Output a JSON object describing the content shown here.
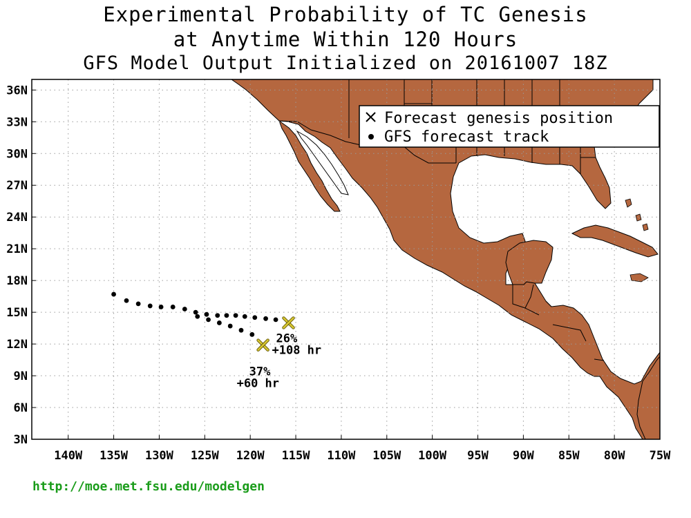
{
  "title": {
    "line1": "Experimental Probability of TC Genesis",
    "line2": "at Anytime Within 120 Hours",
    "line3": "GFS Model Output Initialized on 20161007 18Z"
  },
  "legend": {
    "genesis_label": "Forecast genesis position",
    "track_label": "GFS forecast track"
  },
  "footer": {
    "url": "http://moe.met.fsu.edu/modelgen"
  },
  "colors": {
    "land": "#b5673f",
    "ocean": "#ffffff",
    "genesis_marker": "#d8c830",
    "track": "#000000",
    "footer": "#1a9c1a"
  },
  "icons": {
    "genesis_marker": "x-mark-icon",
    "track_marker": "dot-icon"
  },
  "map": {
    "lon_range": [
      -144,
      -75
    ],
    "lat_range": [
      3,
      37
    ],
    "lon_ticks": [
      "140W",
      "135W",
      "130W",
      "125W",
      "120W",
      "115W",
      "110W",
      "105W",
      "100W",
      "95W",
      "90W",
      "85W",
      "80W",
      "75W"
    ],
    "lat_ticks": [
      "3N",
      "6N",
      "9N",
      "12N",
      "15N",
      "18N",
      "21N",
      "24N",
      "27N",
      "30N",
      "33N",
      "36N"
    ],
    "grid": "dotted"
  },
  "genesis_points": [
    {
      "lon": -115.8,
      "lat": 14.0,
      "prob": "26%",
      "lead": "+108 hr"
    },
    {
      "lon": -118.6,
      "lat": 11.9,
      "prob": "37%",
      "lead": "+60 hr"
    }
  ],
  "track": [
    {
      "lon": -135.0,
      "lat": 16.7
    },
    {
      "lon": -133.6,
      "lat": 16.1
    },
    {
      "lon": -132.3,
      "lat": 15.8
    },
    {
      "lon": -131.0,
      "lat": 15.6
    },
    {
      "lon": -129.8,
      "lat": 15.5
    },
    {
      "lon": -128.5,
      "lat": 15.5
    },
    {
      "lon": -127.2,
      "lat": 15.3
    },
    {
      "lon": -126.0,
      "lat": 15.0
    },
    {
      "lon": -124.8,
      "lat": 14.8
    },
    {
      "lon": -123.6,
      "lat": 14.7
    },
    {
      "lon": -122.6,
      "lat": 14.7
    },
    {
      "lon": -121.6,
      "lat": 14.7
    },
    {
      "lon": -120.6,
      "lat": 14.6
    },
    {
      "lon": -119.5,
      "lat": 14.5
    },
    {
      "lon": -118.3,
      "lat": 14.4
    },
    {
      "lon": -117.2,
      "lat": 14.3
    },
    {
      "lon": -115.8,
      "lat": 14.0
    },
    {
      "lon": -125.8,
      "lat": 14.6
    },
    {
      "lon": -124.6,
      "lat": 14.3
    },
    {
      "lon": -123.4,
      "lat": 14.0
    },
    {
      "lon": -122.2,
      "lat": 13.7
    },
    {
      "lon": -121.0,
      "lat": 13.3
    },
    {
      "lon": -119.8,
      "lat": 12.9
    },
    {
      "lon": -118.6,
      "lat": 11.9
    }
  ]
}
